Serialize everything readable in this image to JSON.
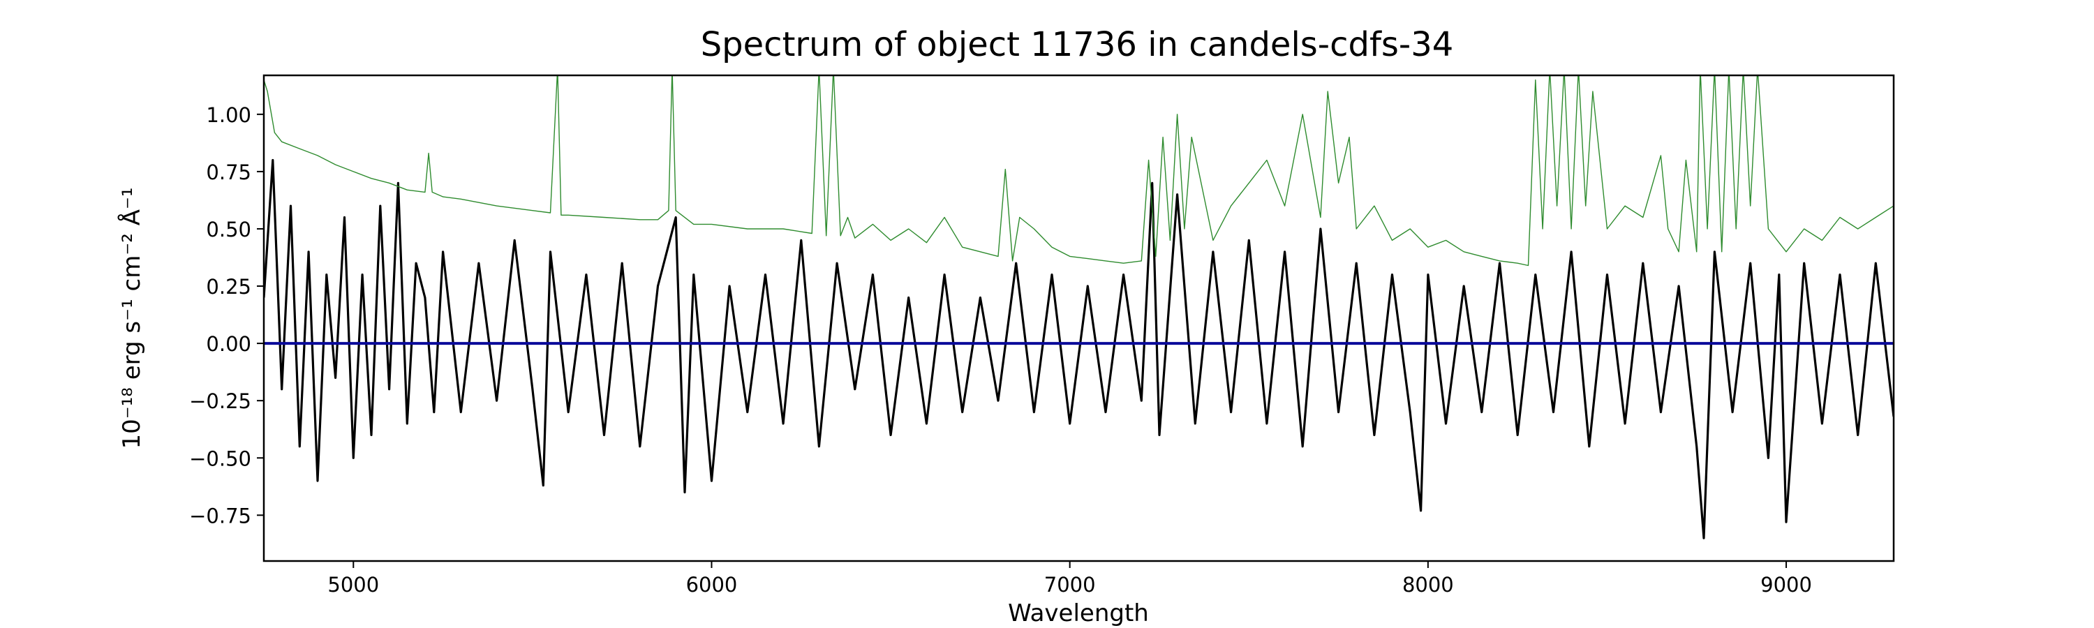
{
  "chart_data": {
    "type": "line",
    "title": "Spectrum of object 11736 in candels-cdfs-34",
    "xlabel": "Wavelength",
    "ylabel": "10⁻¹⁸ erg s⁻¹ cm⁻² Å⁻¹",
    "xlim": [
      4750,
      9300
    ],
    "ylim": [
      -0.95,
      1.17
    ],
    "xticks": [
      5000,
      6000,
      7000,
      8000,
      9000
    ],
    "yticks": [
      -0.75,
      -0.5,
      -0.25,
      0.0,
      0.25,
      0.5,
      0.75,
      1.0
    ],
    "ytick_labels": [
      "−0.75",
      "−0.50",
      "−0.25",
      "0.00",
      "0.25",
      "0.50",
      "0.75",
      "1.00"
    ],
    "grid": false,
    "colors": {
      "flux": "#000000",
      "error": "#2e8b2e",
      "zero": "#0a0a9a"
    },
    "series": [
      {
        "role": "flux",
        "color": "#000000",
        "x": [
          4750,
          4775,
          4800,
          4825,
          4850,
          4875,
          4900,
          4925,
          4950,
          4975,
          5000,
          5025,
          5050,
          5075,
          5100,
          5125,
          5150,
          5175,
          5200,
          5225,
          5250,
          5300,
          5350,
          5400,
          5450,
          5500,
          5530,
          5550,
          5600,
          5650,
          5700,
          5750,
          5800,
          5850,
          5900,
          5925,
          5950,
          6000,
          6050,
          6100,
          6150,
          6200,
          6250,
          6300,
          6350,
          6400,
          6450,
          6500,
          6550,
          6600,
          6650,
          6700,
          6750,
          6800,
          6850,
          6900,
          6950,
          7000,
          7050,
          7100,
          7150,
          7200,
          7230,
          7250,
          7300,
          7350,
          7400,
          7450,
          7500,
          7550,
          7600,
          7650,
          7700,
          7750,
          7800,
          7850,
          7900,
          7950,
          7980,
          8000,
          8050,
          8100,
          8150,
          8200,
          8250,
          8300,
          8350,
          8400,
          8450,
          8500,
          8550,
          8600,
          8650,
          8700,
          8750,
          8770,
          8800,
          8850,
          8900,
          8950,
          8980,
          9000,
          9050,
          9100,
          9150,
          9200,
          9250,
          9300
        ],
        "y": [
          0.2,
          0.8,
          -0.2,
          0.6,
          -0.45,
          0.4,
          -0.6,
          0.3,
          -0.15,
          0.55,
          -0.5,
          0.3,
          -0.4,
          0.6,
          -0.2,
          0.7,
          -0.35,
          0.35,
          0.2,
          -0.3,
          0.4,
          -0.3,
          0.35,
          -0.25,
          0.45,
          -0.2,
          -0.62,
          0.4,
          -0.3,
          0.3,
          -0.4,
          0.35,
          -0.45,
          0.25,
          0.55,
          -0.65,
          0.3,
          -0.6,
          0.25,
          -0.3,
          0.3,
          -0.35,
          0.45,
          -0.45,
          0.35,
          -0.2,
          0.3,
          -0.4,
          0.2,
          -0.35,
          0.3,
          -0.3,
          0.2,
          -0.25,
          0.35,
          -0.3,
          0.3,
          -0.35,
          0.25,
          -0.3,
          0.3,
          -0.25,
          0.7,
          -0.4,
          0.65,
          -0.35,
          0.4,
          -0.3,
          0.45,
          -0.35,
          0.4,
          -0.45,
          0.5,
          -0.3,
          0.35,
          -0.4,
          0.3,
          -0.3,
          -0.73,
          0.3,
          -0.35,
          0.25,
          -0.3,
          0.35,
          -0.4,
          0.3,
          -0.3,
          0.4,
          -0.45,
          0.3,
          -0.35,
          0.35,
          -0.3,
          0.25,
          -0.45,
          -0.85,
          0.4,
          -0.3,
          0.35,
          -0.5,
          0.3,
          -0.78,
          0.35,
          -0.35,
          0.3,
          -0.4,
          0.35,
          -0.32
        ]
      },
      {
        "role": "error",
        "color": "#2e8b2e",
        "x": [
          4750,
          4760,
          4780,
          4800,
          4850,
          4900,
          4950,
          5000,
          5050,
          5100,
          5150,
          5200,
          5210,
          5220,
          5250,
          5300,
          5400,
          5500,
          5550,
          5570,
          5580,
          5600,
          5700,
          5800,
          5850,
          5880,
          5890,
          5900,
          5950,
          6000,
          6100,
          6200,
          6280,
          6300,
          6320,
          6340,
          6360,
          6380,
          6400,
          6450,
          6500,
          6550,
          6600,
          6650,
          6700,
          6750,
          6800,
          6820,
          6840,
          6860,
          6900,
          6950,
          7000,
          7050,
          7100,
          7150,
          7200,
          7220,
          7240,
          7260,
          7280,
          7300,
          7320,
          7340,
          7400,
          7450,
          7500,
          7550,
          7600,
          7650,
          7700,
          7720,
          7750,
          7780,
          7800,
          7850,
          7900,
          7950,
          8000,
          8050,
          8100,
          8150,
          8200,
          8250,
          8280,
          8300,
          8320,
          8340,
          8360,
          8380,
          8400,
          8420,
          8440,
          8460,
          8500,
          8550,
          8600,
          8650,
          8670,
          8700,
          8720,
          8750,
          8760,
          8780,
          8800,
          8820,
          8840,
          8860,
          8880,
          8900,
          8920,
          8950,
          9000,
          9050,
          9100,
          9150,
          9200,
          9250,
          9300
        ],
        "y": [
          1.15,
          1.1,
          0.92,
          0.88,
          0.85,
          0.82,
          0.78,
          0.75,
          0.72,
          0.7,
          0.67,
          0.66,
          0.83,
          0.66,
          0.64,
          0.63,
          0.6,
          0.58,
          0.57,
          1.2,
          0.56,
          0.56,
          0.55,
          0.54,
          0.54,
          0.58,
          1.2,
          0.58,
          0.52,
          0.52,
          0.5,
          0.5,
          0.48,
          1.2,
          0.47,
          1.2,
          0.47,
          0.55,
          0.46,
          0.52,
          0.45,
          0.5,
          0.44,
          0.55,
          0.42,
          0.4,
          0.38,
          0.76,
          0.36,
          0.55,
          0.5,
          0.42,
          0.38,
          0.37,
          0.36,
          0.35,
          0.36,
          0.8,
          0.38,
          0.9,
          0.45,
          1.0,
          0.5,
          0.9,
          0.45,
          0.6,
          0.7,
          0.8,
          0.6,
          1.0,
          0.55,
          1.1,
          0.7,
          0.9,
          0.5,
          0.6,
          0.45,
          0.5,
          0.42,
          0.45,
          0.4,
          0.38,
          0.36,
          0.35,
          0.34,
          1.15,
          0.5,
          1.2,
          0.6,
          1.2,
          0.5,
          1.2,
          0.6,
          1.1,
          0.5,
          0.6,
          0.55,
          0.82,
          0.5,
          0.4,
          0.8,
          0.4,
          1.2,
          0.5,
          1.2,
          0.4,
          1.2,
          0.5,
          1.2,
          0.6,
          1.2,
          0.5,
          0.4,
          0.5,
          0.45,
          0.55,
          0.5,
          0.55,
          0.6
        ]
      },
      {
        "role": "zero",
        "color": "#0a0a9a",
        "x": [
          4750,
          9300
        ],
        "y": [
          0.0,
          0.0
        ]
      }
    ]
  }
}
